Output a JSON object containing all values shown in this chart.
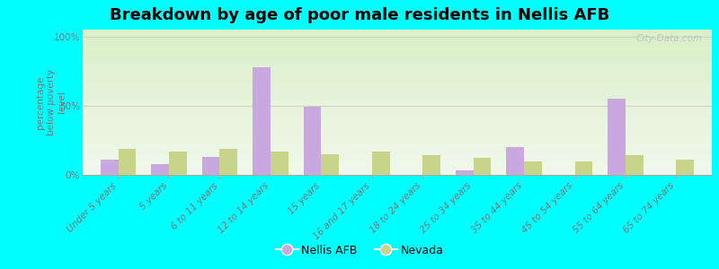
{
  "title": "Breakdown by age of poor male residents in Nellis AFB",
  "categories": [
    "Under 5 years",
    "5 years",
    "6 to 11 years",
    "12 to 14 years",
    "15 years",
    "16 and 17 years",
    "18 to 24 years",
    "25 to 34 years",
    "35 to 44 years",
    "45 to 54 years",
    "55 to 64 years",
    "65 to 74 years"
  ],
  "nellis_values": [
    11,
    8,
    13,
    78,
    49,
    0,
    0,
    3,
    20,
    0,
    55,
    0
  ],
  "nevada_values": [
    19,
    17,
    19,
    17,
    15,
    17,
    14,
    12,
    10,
    10,
    14,
    11
  ],
  "nellis_color": "#c9a8e0",
  "nevada_color": "#c8d48a",
  "ylabel": "percentage\nbelow poverty\nlevel",
  "yticks": [
    0,
    50,
    100
  ],
  "ytick_labels": [
    "0%",
    "50%",
    "100%"
  ],
  "ylim": [
    0,
    105
  ],
  "background_top": "#e8f5e0",
  "background_bottom": "#d8eed0",
  "outer_background": "#00ffff",
  "bar_width": 0.35,
  "legend_labels": [
    "Nellis AFB",
    "Nevada"
  ],
  "watermark": "City-Data.com",
  "title_fontsize": 13,
  "tick_fontsize": 7.5,
  "ylabel_fontsize": 7.5
}
